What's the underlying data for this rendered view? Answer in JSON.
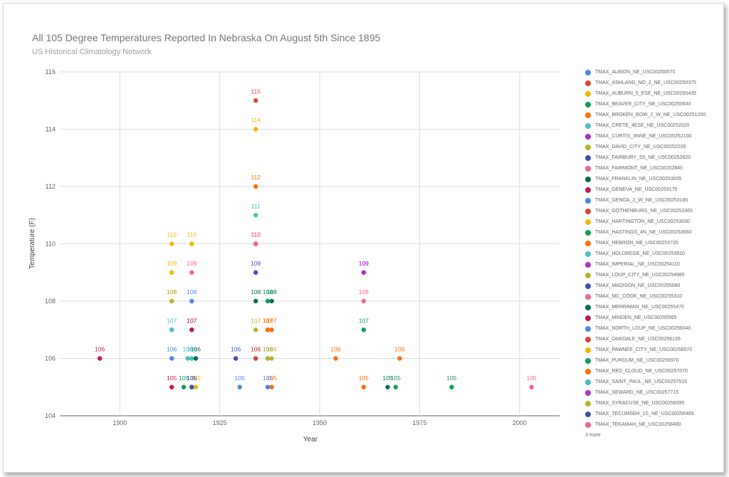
{
  "chart_data": {
    "type": "scatter",
    "title": "All 105 Degree Temperatures Reported In Nebraska On August 5th Since 1895",
    "subtitle": "US Historical Climatology Network",
    "xlabel": "Year",
    "ylabel": "Temperature (F)",
    "xlim": [
      1885,
      2010
    ],
    "ylim": [
      104,
      116
    ],
    "x_ticks": [
      "1900",
      "1925",
      "1950",
      "1975",
      "2000"
    ],
    "y_ticks": [
      "104",
      "106",
      "108",
      "110",
      "112",
      "114",
      "116"
    ],
    "grid": true,
    "legend_position": "right",
    "legend_more": "3 more",
    "series": [
      {
        "name": "TMAX_ALBION_NE_USC00250070",
        "color": "#4a86e8",
        "points": [
          [
            1930,
            105
          ],
          [
            1937,
            106
          ]
        ]
      },
      {
        "name": "TMAX_ASHLAND_NO_2_NE_USC00250375",
        "color": "#db4437",
        "points": [
          [
            1934,
            115
          ]
        ]
      },
      {
        "name": "TMAX_AUBURN_5_ESE_NE_USC00250435",
        "color": "#f4b400",
        "points": [
          [
            1934,
            114
          ]
        ]
      },
      {
        "name": "TMAX_BEAVER_CITY_NE_USC00250640",
        "color": "#0f9d58",
        "points": [
          [
            1916,
            105
          ]
        ]
      },
      {
        "name": "TMAX_BROKEN_BOW_2_W_NE_USC00251200",
        "color": "#ff6d00",
        "points": [
          [
            1934,
            112
          ],
          [
            1938,
            107
          ],
          [
            1970,
            106
          ]
        ]
      },
      {
        "name": "TMAX_CRETE_4ESE_NE_USC00252020",
        "color": "#46bdc6",
        "points": [
          [
            1913,
            107
          ]
        ]
      },
      {
        "name": "TMAX_CURTIS_3NNE_NE_USC00252100",
        "color": "#ab30c4",
        "points": [
          [
            1961,
            109
          ]
        ]
      },
      {
        "name": "TMAX_DAVID_CITY_NE_USC00252205",
        "color": "#b7b32a",
        "points": [
          [
            1913,
            108
          ],
          [
            1934,
            107
          ]
        ]
      },
      {
        "name": "TMAX_FAIRBURY_5S_NE_USC00252820",
        "color": "#3f51b5",
        "points": [
          [
            1918,
            107
          ],
          [
            1929,
            106
          ]
        ]
      },
      {
        "name": "TMAX_FAIRMONT_NE_USC00252840",
        "color": "#f06292",
        "points": [
          [
            1918,
            109
          ],
          [
            1934,
            110
          ],
          [
            1961,
            108
          ]
        ]
      },
      {
        "name": "TMAX_FRANKLIN_NE_USC00253035",
        "color": "#0b6b4f",
        "points": [
          [
            1934,
            108
          ],
          [
            1967,
            105
          ]
        ]
      },
      {
        "name": "TMAX_GENEVA_NE_USC00253175",
        "color": "#c2185b",
        "points": [
          [
            1895,
            106
          ],
          [
            1913,
            105
          ]
        ]
      },
      {
        "name": "TMAX_GENOA_2_W_NE_USC00253185",
        "color": "#4a86e8",
        "points": [
          [
            1913,
            106
          ],
          [
            1918,
            108
          ]
        ]
      },
      {
        "name": "TMAX_GOTHENBURG_NE_USC00253365",
        "color": "#db4437",
        "points": [
          [
            1934,
            106
          ]
        ]
      },
      {
        "name": "TMAX_HARTINGTON_NE_USC00253630",
        "color": "#f4b400",
        "points": [
          [
            1913,
            110
          ],
          [
            1913,
            109
          ],
          [
            1919,
            105
          ]
        ]
      },
      {
        "name": "TMAX_HASTINGS_4N_NE_USC00253660",
        "color": "#0f9d58",
        "points": [
          [
            1969,
            105
          ],
          [
            1983,
            105
          ],
          [
            1961,
            107
          ]
        ]
      },
      {
        "name": "TMAX_HEBRON_NE_USC00253735",
        "color": "#ff6d00",
        "points": [
          [
            1954,
            106
          ],
          [
            1961,
            105
          ],
          [
            1937,
            107
          ],
          [
            1938,
            105
          ]
        ]
      },
      {
        "name": "TMAX_HOLDREGE_NE_USC00253910",
        "color": "#46bdc6",
        "points": [
          [
            1934,
            111
          ],
          [
            1918,
            106
          ]
        ]
      },
      {
        "name": "TMAX_IMPERIAL_NE_USC00254110",
        "color": "#ab30c4",
        "points": [
          [
            1934,
            110
          ]
        ]
      },
      {
        "name": "TMAX_LOUP_CITY_NE_USC00254985",
        "color": "#b7b32a",
        "points": [
          [
            1937,
            106
          ],
          [
            1938,
            106
          ]
        ]
      },
      {
        "name": "TMAX_MADISON_NE_USC00255080",
        "color": "#3f51b5",
        "points": [
          [
            1934,
            109
          ],
          [
            1918,
            105
          ]
        ]
      },
      {
        "name": "TMAX_MC_COOK_NE_USC00255310",
        "color": "#f06292",
        "points": [
          [
            2003,
            105
          ]
        ]
      },
      {
        "name": "TMAX_MERRIMAN_NE_USC00255470",
        "color": "#0b6b4f",
        "points": [
          [
            1938,
            108
          ],
          [
            1919,
            106
          ]
        ]
      },
      {
        "name": "TMAX_MINDEN_NE_USC00255565",
        "color": "#c2185b",
        "points": [
          [
            1918,
            107
          ]
        ]
      },
      {
        "name": "TMAX_NORTH_LOUP_NE_USC00256040",
        "color": "#4a86e8",
        "points": [
          [
            1937,
            105
          ]
        ]
      },
      {
        "name": "TMAX_OAKDALE_NE_USC00256135",
        "color": "#db4437",
        "points": [
          [
            1934,
            106
          ]
        ]
      },
      {
        "name": "TMAX_PAWNEE_CITY_NE_USC00256570",
        "color": "#f4b400",
        "points": [
          [
            1918,
            110
          ]
        ]
      },
      {
        "name": "TMAX_PURDUM_NE_USC00256970",
        "color": "#0f9d58",
        "points": [
          [
            1937,
            108
          ]
        ]
      },
      {
        "name": "TMAX_RED_CLOUD_NE_USC00257070",
        "color": "#ff6d00",
        "points": [
          [
            1937,
            107
          ]
        ]
      },
      {
        "name": "TMAX_SAINT_PAUL_NE_USC00257515",
        "color": "#46bdc6",
        "points": [
          [
            1917,
            106
          ]
        ]
      },
      {
        "name": "TMAX_SEWARD_NE_USC00257715",
        "color": "#ab30c4",
        "points": [
          [
            1961,
            109
          ]
        ]
      },
      {
        "name": "TMAX_SYRACUSE_NE_USC00258395",
        "color": "#b7b32a",
        "points": [
          [
            1913,
            108
          ]
        ]
      },
      {
        "name": "TMAX_TECUMSEH_1S_NE_USC00258465",
        "color": "#3f51b5",
        "points": [
          [
            1918,
            105
          ]
        ]
      },
      {
        "name": "TMAX_TEKAMAH_NE_USC00258480",
        "color": "#f06292",
        "points": [
          [
            1934,
            110
          ]
        ]
      }
    ]
  }
}
